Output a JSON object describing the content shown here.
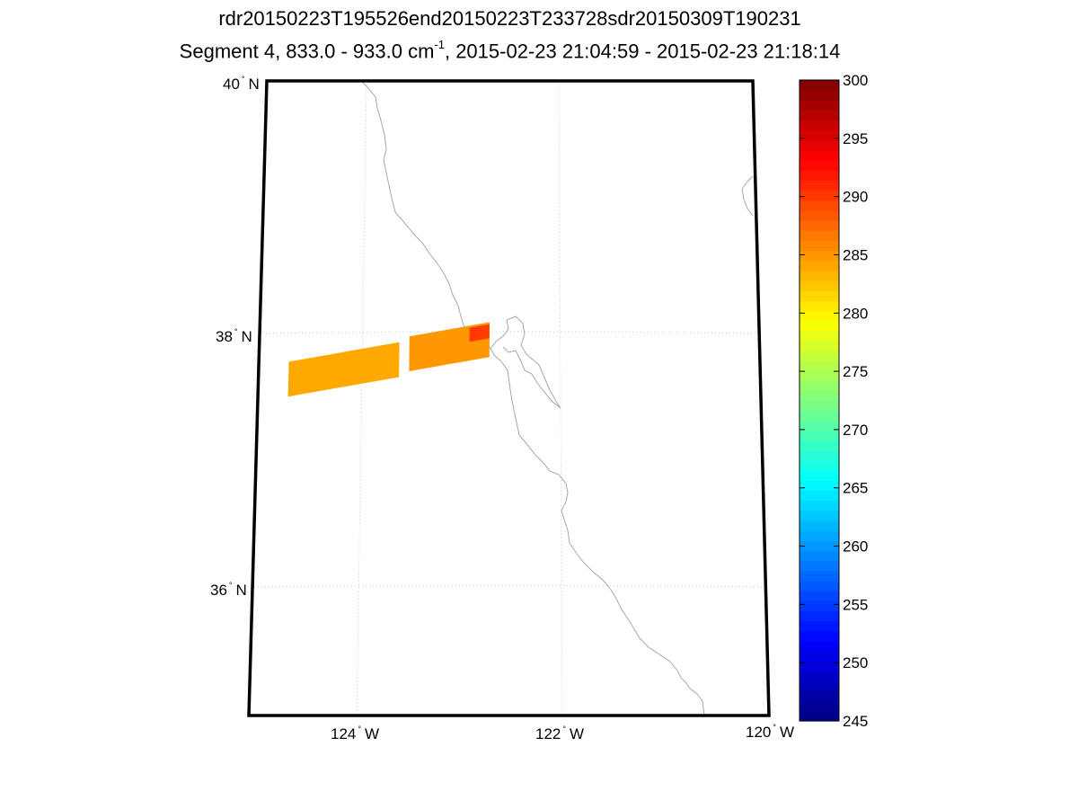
{
  "title": {
    "line1": "rdr20150223T195526end20150223T233728sdr20150309T190231",
    "line2_prefix": "Segment 4, 833.0 - 933.0 cm",
    "line2_exponent": "-1",
    "line2_suffix": ", 2015-02-23 21:04:59 - 2015-02-23 21:18:14"
  },
  "map": {
    "lat_labels": [
      {
        "deg": "40",
        "hemi": "N",
        "value": 40
      },
      {
        "deg": "38",
        "hemi": "N",
        "value": 38
      },
      {
        "deg": "36",
        "hemi": "N",
        "value": 36
      }
    ],
    "lon_labels": [
      {
        "deg": "124",
        "hemi": "W",
        "value": -124
      },
      {
        "deg": "122",
        "hemi": "W",
        "value": -122
      },
      {
        "deg": "120",
        "hemi": "W",
        "value": -120
      }
    ],
    "graticule": "on",
    "coastline_color": "#a8a8a8",
    "frame_color": "#000000"
  },
  "colorbar": {
    "colormap": "jet",
    "min": 245,
    "max": 300,
    "ticks": [
      "300",
      "295",
      "290",
      "285",
      "280",
      "275",
      "270",
      "265",
      "260",
      "255",
      "250",
      "245"
    ]
  },
  "chart_data": {
    "type": "heatmap",
    "title": "rdr20150223T195526end20150223T233728sdr20150309T190231",
    "subtitle": "Segment 4, 833.0 - 933.0 cm-1, 2015-02-23 21:04:59 - 2015-02-23 21:18:14",
    "lat_range": [
      35,
      40
    ],
    "lon_range": [
      -125,
      -120
    ],
    "color_range": [
      245,
      300
    ],
    "swath_granules": [
      {
        "lon": [
          -124.7,
          -123.6
        ],
        "lat": [
          37.4,
          37.9
        ],
        "value": 284
      },
      {
        "lon": [
          -123.5,
          -122.7
        ],
        "lat": [
          37.6,
          38.1
        ],
        "value": 285
      },
      {
        "lon": [
          -122.9,
          -122.7
        ],
        "lat": [
          37.9,
          38.1
        ],
        "value": 290
      }
    ]
  }
}
